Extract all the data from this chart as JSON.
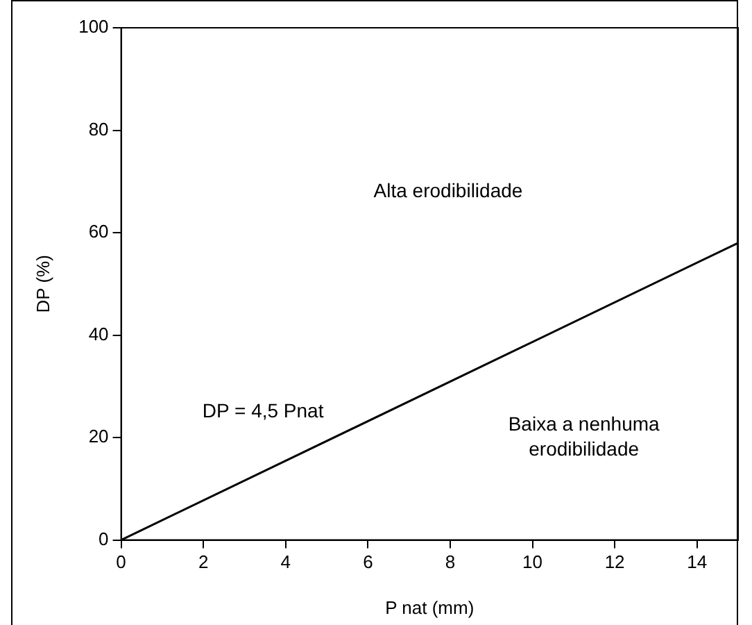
{
  "chart_data": {
    "type": "line",
    "xlabel": "P nat (mm)",
    "ylabel": "DP (%)",
    "x": [
      0,
      15
    ],
    "series": [
      {
        "color": "#000000",
        "values": [
          0,
          58
        ]
      }
    ],
    "xlim": [
      0,
      15
    ],
    "xticks": [
      0,
      2,
      4,
      6,
      8,
      10,
      12,
      14
    ],
    "ylim": [
      0,
      100
    ],
    "yticks": [
      0,
      20,
      40,
      60,
      80,
      100
    ],
    "grid": false,
    "legend": false,
    "marker": "none",
    "line_style": "solid",
    "annotations": [
      "Alta erodibilidade",
      "DP = 4,5 Pnat",
      "Baixa a nenhuma\nerodibilidade"
    ]
  }
}
